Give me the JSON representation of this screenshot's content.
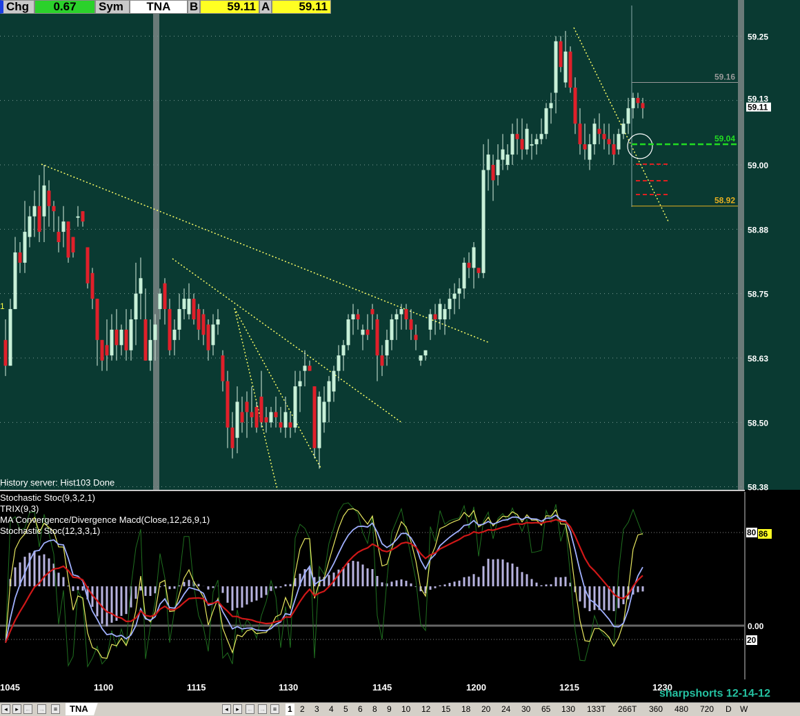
{
  "quote_bar": {
    "chg_label": "Chg",
    "chg_value": "0.67",
    "sym_label": "Sym",
    "sym_value": "TNA",
    "bid_label": "B",
    "bid_value": "59.11",
    "ask_label": "A",
    "ask_value": "59.11"
  },
  "status_text": "History server: Hist103 Done",
  "left_marker": "1",
  "indicator_labels": [
    "Stochastic Stoc(9,3,2,1)",
    "TRIX(9,3)",
    "MA Convergence/Divergence Macd(Close,12,26,9,1)",
    "Stochastic Stoc(12,3,3,1)"
  ],
  "watermark": "sharpshorts 12-14-12",
  "colors": {
    "price_bg": "#0a3a32",
    "up_candle": "#c8f0d8",
    "down_candle": "#e0202a",
    "trendline": "#ffff66",
    "grid": "#7a9a94"
  },
  "chart_data": {
    "type": "candlestick",
    "symbol": "TNA",
    "x_tick_labels": [
      "1045",
      "1100",
      "1115",
      "1130",
      "1145",
      "1200",
      "1215",
      "1230"
    ],
    "y_tick_labels": [
      "59.25",
      "59.13",
      "59.11",
      "59.00",
      "58.88",
      "58.75",
      "58.63",
      "58.50",
      "58.38"
    ],
    "y_grid_values": [
      59.25,
      59.125,
      59.0,
      58.875,
      58.75,
      58.625,
      58.5,
      58.375
    ],
    "ylim": [
      58.365,
      59.33
    ],
    "price_levels": [
      {
        "value": 59.16,
        "label": "59.16",
        "color": "#999999"
      },
      {
        "value": 59.04,
        "label": "59.04",
        "color": "#22dd22"
      },
      {
        "value": 58.92,
        "label": "58.92",
        "color": "#e6b020"
      }
    ],
    "candles": [
      [
        58.66,
        58.7,
        58.59,
        58.61
      ],
      [
        58.61,
        58.74,
        58.61,
        58.72
      ],
      [
        58.72,
        58.86,
        58.72,
        58.83
      ],
      [
        58.83,
        58.85,
        58.79,
        58.81
      ],
      [
        58.81,
        58.93,
        58.79,
        58.87
      ],
      [
        58.86,
        58.92,
        58.84,
        58.9
      ],
      [
        58.9,
        58.95,
        58.86,
        58.92
      ],
      [
        58.92,
        58.98,
        58.85,
        58.87
      ],
      [
        58.9,
        59.0,
        58.85,
        58.96
      ],
      [
        58.95,
        58.97,
        58.88,
        58.92
      ],
      [
        58.92,
        58.93,
        58.87,
        58.91
      ],
      [
        58.87,
        58.9,
        58.83,
        58.85
      ],
      [
        58.87,
        58.92,
        58.84,
        58.89
      ],
      [
        58.89,
        58.89,
        58.81,
        58.82
      ],
      [
        58.86,
        58.86,
        58.82,
        58.83
      ],
      [
        58.9,
        58.92,
        58.88,
        58.9
      ],
      [
        58.91,
        58.91,
        58.88,
        58.89
      ],
      [
        58.84,
        58.84,
        58.76,
        58.77
      ],
      [
        58.79,
        58.8,
        58.72,
        58.74
      ],
      [
        58.74,
        58.74,
        58.61,
        58.66
      ],
      [
        58.66,
        58.66,
        58.6,
        58.62
      ],
      [
        58.65,
        58.7,
        58.6,
        58.63
      ],
      [
        58.63,
        58.71,
        58.62,
        58.68
      ],
      [
        58.68,
        58.72,
        58.62,
        58.65
      ],
      [
        58.65,
        58.69,
        58.63,
        58.68
      ],
      [
        58.68,
        58.72,
        58.62,
        58.64
      ],
      [
        58.64,
        58.72,
        58.62,
        58.7
      ],
      [
        58.7,
        58.81,
        58.65,
        58.75
      ],
      [
        58.75,
        58.82,
        58.7,
        58.78
      ],
      [
        58.7,
        58.76,
        58.62,
        58.62
      ],
      [
        58.62,
        58.7,
        58.6,
        58.66
      ],
      [
        58.66,
        58.71,
        58.62,
        58.69
      ],
      [
        58.72,
        58.76,
        58.7,
        58.75
      ],
      [
        58.77,
        58.78,
        58.69,
        58.72
      ],
      [
        58.72,
        58.74,
        58.63,
        58.64
      ],
      [
        58.66,
        58.7,
        58.63,
        58.68
      ],
      [
        58.68,
        58.75,
        58.66,
        58.72
      ],
      [
        58.72,
        58.76,
        58.7,
        58.74
      ],
      [
        58.71,
        58.77,
        58.7,
        58.74
      ],
      [
        58.74,
        58.75,
        58.69,
        58.7
      ],
      [
        58.72,
        58.73,
        58.66,
        58.68
      ],
      [
        58.71,
        58.72,
        58.65,
        58.67
      ],
      [
        58.69,
        58.7,
        58.62,
        58.64
      ],
      [
        58.65,
        58.71,
        58.63,
        58.69
      ],
      [
        58.69,
        58.72,
        58.67,
        58.7
      ],
      [
        58.63,
        58.64,
        58.56,
        58.58
      ],
      [
        58.58,
        58.6,
        58.45,
        58.49
      ],
      [
        58.49,
        58.52,
        58.43,
        58.45
      ],
      [
        58.47,
        58.57,
        58.44,
        58.54
      ],
      [
        58.52,
        58.55,
        58.48,
        58.5
      ],
      [
        58.54,
        58.56,
        58.47,
        58.52
      ],
      [
        58.52,
        58.57,
        58.49,
        58.51
      ],
      [
        58.53,
        58.54,
        58.48,
        58.49
      ],
      [
        58.55,
        58.6,
        58.49,
        58.5
      ],
      [
        58.51,
        58.53,
        58.48,
        58.5
      ],
      [
        58.5,
        58.53,
        58.49,
        58.52
      ],
      [
        58.52,
        58.55,
        58.49,
        58.51
      ],
      [
        58.5,
        58.53,
        58.48,
        58.49
      ],
      [
        58.49,
        58.55,
        58.47,
        58.52
      ],
      [
        58.5,
        58.52,
        58.47,
        58.49
      ],
      [
        58.49,
        58.6,
        58.48,
        58.57
      ],
      [
        58.57,
        58.6,
        58.52,
        58.58
      ],
      [
        58.6,
        58.64,
        58.57,
        58.61
      ],
      [
        58.61,
        58.62,
        58.6,
        58.6
      ],
      [
        58.57,
        58.57,
        58.43,
        58.45
      ],
      [
        58.45,
        58.56,
        58.41,
        58.55
      ],
      [
        58.5,
        58.57,
        58.48,
        58.54
      ],
      [
        58.54,
        58.59,
        58.5,
        58.58
      ],
      [
        58.56,
        58.61,
        58.54,
        58.6
      ],
      [
        58.6,
        58.65,
        58.58,
        58.63
      ],
      [
        58.63,
        58.66,
        58.6,
        58.65
      ],
      [
        58.65,
        58.71,
        58.64,
        58.7
      ],
      [
        58.7,
        58.73,
        58.67,
        58.71
      ],
      [
        58.71,
        58.72,
        58.68,
        58.7
      ],
      [
        58.67,
        58.69,
        58.64,
        58.68
      ],
      [
        58.68,
        58.71,
        58.66,
        58.67
      ],
      [
        58.72,
        58.73,
        58.68,
        58.71
      ],
      [
        58.7,
        58.71,
        58.58,
        58.63
      ],
      [
        58.63,
        58.65,
        58.59,
        58.61
      ],
      [
        58.63,
        58.68,
        58.61,
        58.66
      ],
      [
        58.66,
        58.71,
        58.64,
        58.7
      ],
      [
        58.7,
        58.72,
        58.66,
        58.71
      ],
      [
        58.71,
        58.73,
        58.68,
        58.72
      ],
      [
        58.72,
        58.73,
        58.68,
        58.7
      ],
      [
        58.7,
        58.72,
        58.66,
        58.68
      ],
      [
        58.67,
        58.69,
        58.64,
        58.66
      ],
      [
        58.62,
        58.63,
        58.61,
        58.63
      ],
      [
        58.63,
        58.64,
        58.62,
        58.64
      ],
      [
        58.68,
        58.72,
        58.66,
        58.71
      ],
      [
        58.71,
        58.73,
        58.67,
        58.7
      ],
      [
        58.7,
        58.74,
        58.68,
        58.73
      ],
      [
        58.7,
        58.73,
        58.67,
        58.72
      ],
      [
        58.72,
        58.76,
        58.7,
        58.74
      ],
      [
        58.74,
        58.77,
        58.71,
        58.75
      ],
      [
        58.75,
        58.78,
        58.72,
        58.76
      ],
      [
        58.76,
        58.82,
        58.74,
        58.81
      ],
      [
        58.81,
        58.83,
        58.78,
        58.8
      ],
      [
        58.8,
        58.85,
        58.76,
        58.84
      ],
      [
        58.8,
        58.8,
        58.78,
        58.79
      ],
      [
        58.79,
        59.04,
        58.78,
        58.99
      ],
      [
        58.99,
        59.05,
        58.95,
        59.02
      ],
      [
        59.0,
        59.02,
        58.93,
        58.97
      ],
      [
        58.98,
        59.04,
        58.96,
        59.01
      ],
      [
        59.01,
        59.06,
        58.99,
        59.03
      ],
      [
        59.0,
        59.04,
        58.99,
        59.02
      ],
      [
        59.02,
        59.08,
        59.0,
        59.06
      ],
      [
        59.06,
        59.09,
        59.02,
        59.05
      ],
      [
        59.05,
        59.09,
        59.01,
        59.03
      ],
      [
        59.03,
        59.08,
        59.02,
        59.07
      ],
      [
        59.04,
        59.06,
        59.01,
        59.04
      ],
      [
        59.04,
        59.06,
        59.02,
        59.05
      ],
      [
        59.05,
        59.09,
        59.04,
        59.06
      ],
      [
        59.06,
        59.12,
        59.05,
        59.11
      ],
      [
        59.11,
        59.14,
        59.08,
        59.12
      ],
      [
        59.14,
        59.25,
        59.1,
        59.24
      ],
      [
        59.24,
        59.25,
        59.18,
        59.19
      ],
      [
        59.16,
        59.26,
        59.15,
        59.22
      ],
      [
        59.22,
        59.23,
        59.14,
        59.15
      ],
      [
        59.15,
        59.17,
        59.06,
        59.08
      ],
      [
        59.08,
        59.11,
        59.02,
        59.04
      ],
      [
        59.04,
        59.08,
        59.01,
        59.03
      ],
      [
        59.01,
        59.06,
        58.99,
        59.04
      ],
      [
        59.04,
        59.09,
        59.02,
        59.08
      ],
      [
        59.07,
        59.1,
        59.04,
        59.06
      ],
      [
        59.06,
        59.08,
        59.03,
        59.05
      ],
      [
        59.05,
        59.08,
        59.02,
        59.04
      ],
      [
        59.04,
        59.06,
        59.0,
        59.02
      ],
      [
        59.03,
        59.07,
        59.02,
        59.06
      ],
      [
        59.06,
        59.09,
        59.05,
        59.08
      ],
      [
        59.08,
        59.13,
        59.06,
        59.11
      ],
      [
        59.11,
        59.14,
        59.09,
        59.13
      ],
      [
        59.13,
        59.14,
        59.11,
        59.12
      ],
      [
        59.12,
        59.13,
        59.09,
        59.11
      ]
    ],
    "indicator_values": {
      "stoch_fast_last": "80",
      "stoch_value": "86",
      "zero_label": "0.00",
      "lower_level": "20"
    }
  },
  "tabbar": {
    "symbol_tab": "TNA",
    "timeframes": [
      "1",
      "2",
      "3",
      "4",
      "5",
      "6",
      "8",
      "9",
      "10",
      "12",
      "15",
      "18",
      "20",
      "24",
      "30",
      "65",
      "130",
      "133T",
      "266T",
      "360",
      "480",
      "720",
      "D",
      "W"
    ],
    "active_timeframe": "1"
  }
}
